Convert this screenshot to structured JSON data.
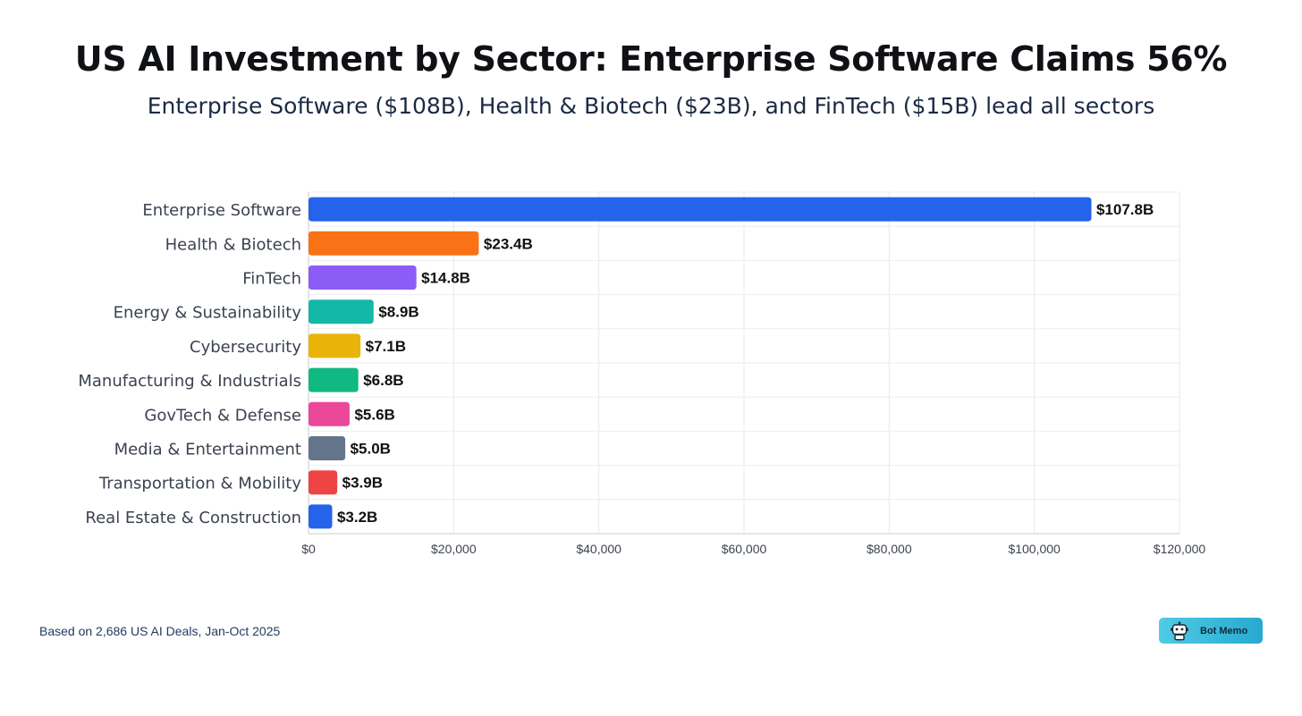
{
  "header": {
    "title": "US AI Investment by Sector: Enterprise Software Claims 56%",
    "subtitle": "Enterprise Software ($108B), Health & Biotech ($23B), and FinTech ($15B) lead all sectors"
  },
  "chart_data": {
    "type": "bar",
    "orientation": "horizontal",
    "categories": [
      "Enterprise Software",
      "Health & Biotech",
      "FinTech",
      "Energy & Sustainability",
      "Cybersecurity",
      "Manufacturing & Industrials",
      "GovTech & Defense",
      "Media & Entertainment",
      "Transportation & Mobility",
      "Real Estate & Construction"
    ],
    "values": [
      107800,
      23400,
      14800,
      8900,
      7100,
      6800,
      5600,
      5000,
      3900,
      3200
    ],
    "data_labels": [
      "$107.8B",
      "$23.4B",
      "$14.8B",
      "$8.9B",
      "$7.1B",
      "$6.8B",
      "$5.6B",
      "$5.0B",
      "$3.9B",
      "$3.2B"
    ],
    "colors": [
      "#2563eb",
      "#f97316",
      "#8b5cf6",
      "#14b8a6",
      "#eab308",
      "#10b981",
      "#ec4899",
      "#64748b",
      "#ef4444",
      "#2563eb"
    ],
    "xlim": [
      0,
      120000
    ],
    "x_ticks": [
      0,
      20000,
      40000,
      60000,
      80000,
      100000,
      120000
    ],
    "x_tick_labels": [
      "$0",
      "$20,000",
      "$40,000",
      "$60,000",
      "$80,000",
      "$100,000",
      "$120,000"
    ],
    "grid": true,
    "xlabel": "",
    "ylabel": ""
  },
  "footer": {
    "note": "Based on 2,686 US AI Deals, Jan-Oct 2025",
    "badge_label": "Bot Memo",
    "badge_icon": "robot-icon"
  }
}
